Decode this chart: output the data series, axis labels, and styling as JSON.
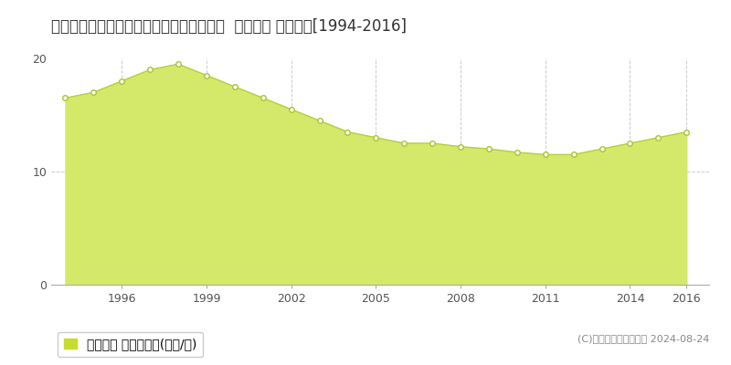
{
  "title": "宮城県黒川郡富谷町あけの平３丁目７番６  地価公示 地価推移[1994-2016]",
  "years": [
    1994,
    1995,
    1996,
    1997,
    1998,
    1999,
    2000,
    2001,
    2002,
    2003,
    2004,
    2005,
    2006,
    2007,
    2008,
    2009,
    2010,
    2011,
    2012,
    2013,
    2014,
    2015,
    2016
  ],
  "values": [
    16.5,
    17.0,
    18.0,
    19.0,
    19.5,
    18.5,
    17.5,
    16.5,
    15.5,
    14.5,
    13.5,
    13.0,
    12.5,
    12.5,
    12.2,
    12.0,
    11.7,
    11.5,
    11.5,
    12.0,
    12.5,
    13.0,
    13.5
  ],
  "ylim": [
    0,
    20
  ],
  "yticks": [
    0,
    10,
    20
  ],
  "xtick_labels": [
    "1996",
    "1999",
    "2002",
    "2005",
    "2008",
    "2011",
    "2014",
    "2016"
  ],
  "xtick_positions": [
    1996,
    1999,
    2002,
    2005,
    2008,
    2011,
    2014,
    2016
  ],
  "fill_color": "#d4e96a",
  "line_color": "#b8cc40",
  "marker_facecolor": "#ffffff",
  "marker_edgecolor": "#b0c030",
  "grid_color": "#cccccc",
  "bg_color": "#ffffff",
  "plot_bg_color": "#f5f5f5",
  "legend_label": "地価公示 平均坪単価(万円/坪)",
  "legend_square_color": "#c8dc30",
  "copyright_text": "(C)土地価格ドットコム 2024-08-24",
  "title_fontsize": 12,
  "tick_fontsize": 9,
  "legend_fontsize": 10,
  "copyright_fontsize": 8
}
